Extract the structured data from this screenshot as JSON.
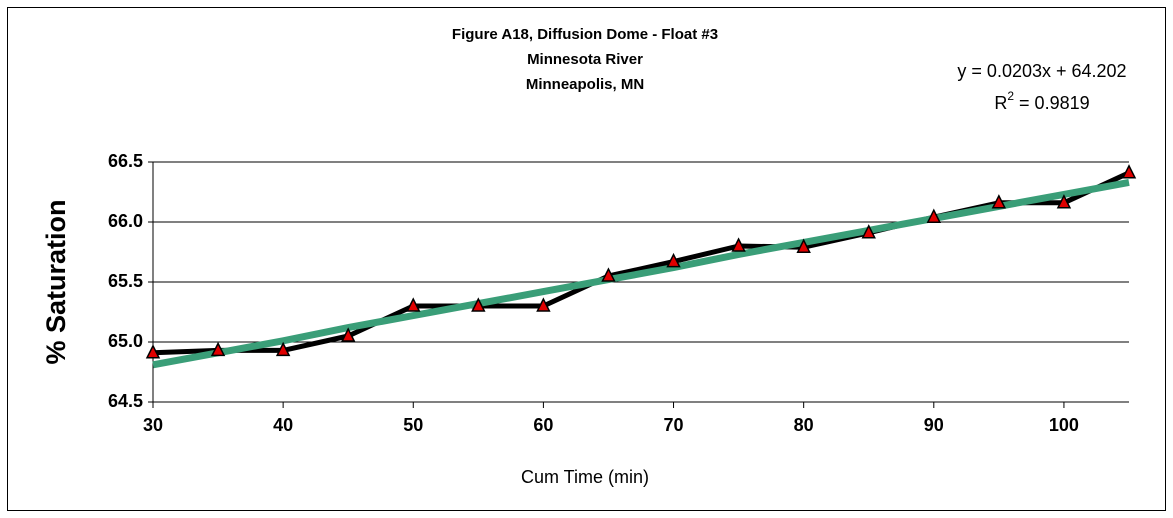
{
  "chart_data": {
    "type": "line",
    "title": [
      "Figure A18, Diffusion Dome - Float #3",
      "Minnesota River",
      "Minneapolis, MN"
    ],
    "annotations": {
      "equation": "y = 0.0203x + 64.202",
      "r2": [
        "R",
        "2",
        " = 0.9819"
      ]
    },
    "xlabel": "Cum Time (min)",
    "ylabel": "% Saturation",
    "x": [
      30,
      35,
      40,
      45,
      50,
      55,
      60,
      65,
      70,
      75,
      80,
      85,
      90,
      95,
      100,
      105
    ],
    "series": [
      {
        "color": "#000000",
        "marker_color": "#e00000",
        "values": [
          64.91,
          64.93,
          64.93,
          65.05,
          65.3,
          65.3,
          65.3,
          65.55,
          65.67,
          65.8,
          65.79,
          65.91,
          66.04,
          66.16,
          66.16,
          66.41
        ]
      },
      {
        "color": "#3a9e78",
        "values": [
          64.81,
          64.91,
          65.01,
          65.12,
          65.22,
          65.32,
          65.42,
          65.52,
          65.62,
          65.73,
          65.83,
          65.93,
          66.03,
          66.13,
          66.23,
          66.33
        ]
      }
    ],
    "xlim": [
      30,
      105
    ],
    "xticks": [
      30,
      40,
      50,
      60,
      70,
      80,
      90,
      100
    ],
    "ylim": [
      64.5,
      66.5
    ],
    "yticks": [
      64.5,
      {
        "value": 65,
        "label": "65.0"
      },
      65.5,
      {
        "value": 66,
        "label": "66.0"
      },
      66.5
    ],
    "grid": true
  }
}
